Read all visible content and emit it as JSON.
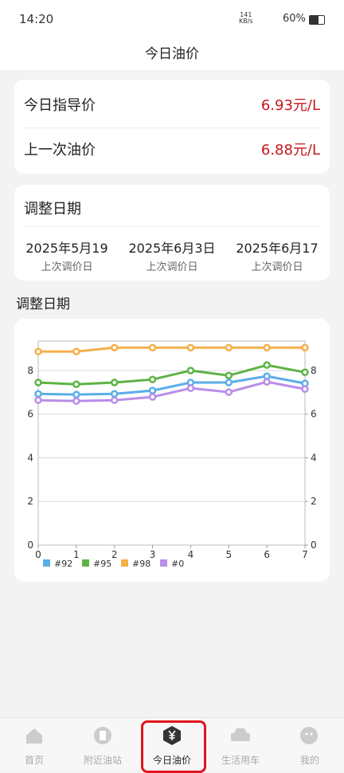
{
  "status_bar": {
    "time": "14:20",
    "speed": "141",
    "speed_unit": "KB/s",
    "battery": "60%"
  },
  "header": {
    "title": "今日油价"
  },
  "price_card": {
    "rows": [
      {
        "label": "今日指导价",
        "value": "6.93元/L"
      },
      {
        "label": "上一次油价",
        "value": "6.88元/L"
      }
    ]
  },
  "date_card": {
    "title": "调整日期",
    "dates": [
      {
        "date": "2025年5月19",
        "label": "上次调价日"
      },
      {
        "date": "2025年6月3日",
        "label": "上次调价日"
      },
      {
        "date": "2025年6月17",
        "label": "上次调价日"
      }
    ]
  },
  "section_title": "调整日期",
  "chart_data": {
    "type": "line",
    "x": [
      0,
      1,
      2,
      3,
      4,
      5,
      6,
      7
    ],
    "xlim": [
      0,
      7
    ],
    "xticks": [
      0,
      1,
      2,
      3,
      4,
      5,
      6,
      7
    ],
    "ylim": [
      0,
      9.35
    ],
    "yticks": [
      0,
      2,
      4,
      6,
      8
    ],
    "y2lim": [
      0,
      9.35
    ],
    "y2ticks": [
      0,
      2,
      4,
      6,
      8
    ],
    "grid": true,
    "series": [
      {
        "name": "#92",
        "color": "#5aaee8",
        "values": [
          6.93,
          6.9,
          6.93,
          7.08,
          7.45,
          7.45,
          7.74,
          7.41
        ]
      },
      {
        "name": "#95",
        "color": "#5db345",
        "values": [
          7.45,
          7.37,
          7.45,
          7.59,
          8.0,
          7.77,
          8.25,
          7.92
        ]
      },
      {
        "name": "#98",
        "color": "#f5b04a",
        "values": [
          8.87,
          8.87,
          9.05,
          9.05,
          9.05,
          9.05,
          9.05,
          9.05
        ]
      },
      {
        "name": "#0",
        "color": "#b98ee8",
        "values": [
          6.64,
          6.6,
          6.64,
          6.79,
          7.19,
          7.01,
          7.48,
          7.15
        ]
      }
    ]
  },
  "nav": {
    "items": [
      "首页",
      "附近油站",
      "今日油价",
      "生活用车",
      "我的"
    ]
  }
}
